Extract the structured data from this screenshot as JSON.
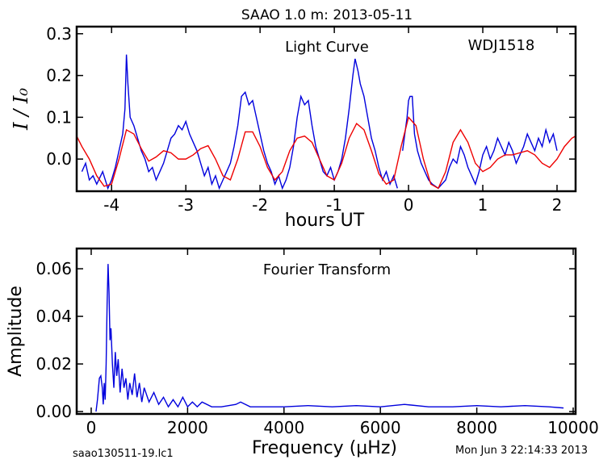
{
  "title": "SAAO 1.0 m:  2013-05-11",
  "footer_left": "saao130511-19.lc1",
  "footer_right": "Mon Jun  3 22:14:33 2013",
  "chart_data": [
    {
      "type": "line",
      "annotations": [
        "Light Curve",
        "WDJ1518"
      ],
      "xlabel": "hours UT",
      "ylabel": "I / I₀",
      "xlim": [
        -4.47,
        2.25
      ],
      "ylim": [
        -0.077,
        0.317
      ],
      "xticks": [
        -4,
        -3,
        -2,
        -1,
        0,
        1,
        2
      ],
      "yticks": [
        {
          "value": 0,
          "label": "0.0"
        },
        0.1,
        0.2,
        0.3
      ],
      "series": [
        {
          "color": "#0000dd",
          "x": [
            -4.4,
            -4.35,
            -4.3,
            -4.25,
            -4.2,
            -4.12,
            -4.05,
            -4.0,
            -3.95,
            -3.9,
            -3.85,
            -3.82,
            -3.8,
            -3.78,
            -3.75,
            -3.7,
            -3.65,
            -3.6,
            -3.55,
            -3.5,
            -3.45,
            -3.4,
            -3.35,
            -3.3,
            -3.25,
            -3.2,
            -3.15,
            -3.1,
            -3.05,
            -3.0,
            -2.95,
            -2.9,
            -2.85,
            -2.8,
            -2.75,
            -2.7,
            -2.65,
            -2.6,
            -2.55,
            -2.5,
            -2.45,
            -2.4,
            -2.35,
            -2.3,
            -2.25,
            -2.2,
            -2.15,
            -2.1,
            -2.05,
            -2.0,
            -1.95,
            -1.9,
            -1.85,
            -1.8,
            -1.75,
            -1.7,
            -1.65,
            -1.6,
            -1.55,
            -1.5,
            -1.45,
            -1.4,
            -1.35,
            -1.3,
            -1.25,
            -1.2,
            -1.15,
            -1.1,
            -1.05,
            -1.0,
            -0.95,
            -0.9,
            -0.85,
            -0.8,
            -0.75,
            -0.72,
            -0.68,
            -0.65,
            -0.6,
            -0.55,
            -0.5,
            -0.45,
            -0.4,
            -0.35,
            -0.3,
            -0.25,
            -0.2,
            -0.15,
            -0.1,
            -0.08,
            -0.05,
            -0.02,
            0.0,
            0.02,
            0.05,
            0.08,
            0.12,
            0.17,
            0.22,
            0.27,
            0.32,
            0.4,
            0.5,
            0.55,
            0.6,
            0.65,
            0.7,
            0.75,
            0.8,
            0.85,
            0.9,
            0.95,
            1.0,
            1.05,
            1.1,
            1.15,
            1.2,
            1.25,
            1.3,
            1.35,
            1.4,
            1.45,
            1.5,
            1.55,
            1.6,
            1.65,
            1.7,
            1.75,
            1.8,
            1.85,
            1.9,
            1.95,
            2.0
          ],
          "values": [
            -0.03,
            -0.01,
            -0.05,
            -0.04,
            -0.06,
            -0.03,
            -0.07,
            -0.05,
            -0.02,
            0.02,
            0.06,
            0.12,
            0.25,
            0.18,
            0.1,
            0.08,
            0.05,
            0.02,
            0.0,
            -0.03,
            -0.02,
            -0.05,
            -0.03,
            -0.01,
            0.02,
            0.05,
            0.06,
            0.08,
            0.07,
            0.09,
            0.06,
            0.04,
            0.02,
            -0.01,
            -0.04,
            -0.02,
            -0.06,
            -0.04,
            -0.07,
            -0.05,
            -0.03,
            -0.01,
            0.03,
            0.08,
            0.15,
            0.16,
            0.13,
            0.14,
            0.1,
            0.06,
            0.02,
            -0.01,
            -0.03,
            -0.06,
            -0.04,
            -0.07,
            -0.05,
            -0.02,
            0.03,
            0.1,
            0.15,
            0.13,
            0.14,
            0.08,
            0.03,
            0.0,
            -0.03,
            -0.04,
            -0.02,
            -0.05,
            -0.03,
            0.0,
            0.05,
            0.12,
            0.2,
            0.24,
            0.21,
            0.18,
            0.15,
            0.1,
            0.05,
            0.02,
            -0.02,
            -0.05,
            -0.03,
            -0.06,
            -0.04,
            -0.07,
            null,
            0.02,
            0.06,
            0.1,
            0.14,
            0.15,
            0.15,
            0.06,
            0.02,
            -0.01,
            -0.03,
            -0.05,
            -0.06,
            -0.07,
            -0.05,
            -0.02,
            0.0,
            -0.01,
            0.03,
            0.01,
            -0.02,
            -0.04,
            -0.06,
            -0.03,
            0.01,
            0.03,
            0.0,
            0.02,
            0.05,
            0.03,
            0.01,
            0.04,
            0.02,
            -0.01,
            0.01,
            0.03,
            0.06,
            0.04,
            0.02,
            0.05,
            0.03,
            0.07,
            0.04,
            0.06,
            0.02
          ]
        },
        {
          "color": "#ee0000",
          "x": [
            -4.47,
            -4.4,
            -4.3,
            -4.2,
            -4.1,
            -4.0,
            -3.9,
            -3.8,
            -3.7,
            -3.6,
            -3.5,
            -3.4,
            -3.3,
            -3.2,
            -3.1,
            -3.0,
            -2.9,
            -2.8,
            -2.7,
            -2.6,
            -2.5,
            -2.4,
            -2.3,
            -2.2,
            -2.1,
            -2.0,
            -1.9,
            -1.8,
            -1.7,
            -1.6,
            -1.5,
            -1.4,
            -1.3,
            -1.2,
            -1.1,
            -1.0,
            -0.9,
            -0.8,
            -0.7,
            -0.6,
            -0.5,
            -0.4,
            -0.3,
            -0.2,
            -0.1,
            0.0,
            0.1,
            0.2,
            0.3,
            0.4,
            0.5,
            0.6,
            0.7,
            0.8,
            0.9,
            1.0,
            1.1,
            1.2,
            1.3,
            1.4,
            1.5,
            1.6,
            1.7,
            1.8,
            1.9,
            2.0,
            2.1,
            2.2,
            2.25
          ],
          "values": [
            0.055,
            0.03,
            0.0,
            -0.04,
            -0.065,
            -0.06,
            0.0,
            0.07,
            0.06,
            0.025,
            -0.005,
            0.005,
            0.02,
            0.015,
            0.0,
            0.0,
            0.01,
            0.025,
            0.032,
            0.0,
            -0.04,
            -0.05,
            0.0,
            0.065,
            0.065,
            0.03,
            -0.02,
            -0.05,
            -0.03,
            0.02,
            0.05,
            0.055,
            0.04,
            0.0,
            -0.04,
            -0.05,
            -0.01,
            0.05,
            0.085,
            0.07,
            0.02,
            -0.035,
            -0.06,
            -0.05,
            0.03,
            0.1,
            0.08,
            0.0,
            -0.06,
            -0.07,
            -0.03,
            0.04,
            0.07,
            0.04,
            -0.01,
            -0.03,
            -0.02,
            0.0,
            0.01,
            0.01,
            0.015,
            0.02,
            0.01,
            -0.01,
            -0.02,
            0.0,
            0.03,
            0.05,
            0.055
          ]
        }
      ]
    },
    {
      "type": "line",
      "annotations": [
        "Fourier Transform"
      ],
      "xlabel": "Frequency (μHz)",
      "ylabel": "Amplitude",
      "xlim": [
        -301,
        10050
      ],
      "ylim": [
        -0.001,
        0.0685
      ],
      "xticks": [
        0,
        2000,
        4000,
        6000,
        8000,
        10000
      ],
      "yticks": [
        {
          "value": 0,
          "label": "0.00"
        },
        {
          "value": 0.02,
          "label": "0.02"
        },
        {
          "value": 0.04,
          "label": "0.04"
        },
        {
          "value": 0.06,
          "label": "0.06"
        }
      ],
      "series": [
        {
          "color": "#0000dd",
          "x": [
            100,
            130,
            170,
            200,
            230,
            250,
            270,
            290,
            310,
            330,
            350,
            370,
            390,
            410,
            440,
            470,
            500,
            530,
            560,
            600,
            640,
            680,
            720,
            760,
            800,
            850,
            900,
            950,
            1000,
            1050,
            1100,
            1200,
            1300,
            1400,
            1500,
            1600,
            1700,
            1800,
            1900,
            2000,
            2100,
            2200,
            2300,
            2500,
            2700,
            3000,
            3100,
            3300,
            3600,
            4000,
            4500,
            5000,
            5500,
            6000,
            6500,
            7000,
            7500,
            8000,
            8500,
            9000,
            9500,
            9800
          ],
          "values": [
            0.0,
            0.005,
            0.014,
            0.015,
            0.01,
            0.003,
            0.012,
            0.005,
            0.02,
            0.045,
            0.062,
            0.05,
            0.03,
            0.035,
            0.02,
            0.01,
            0.025,
            0.015,
            0.022,
            0.008,
            0.018,
            0.01,
            0.014,
            0.005,
            0.012,
            0.007,
            0.016,
            0.006,
            0.012,
            0.004,
            0.01,
            0.004,
            0.008,
            0.003,
            0.006,
            0.002,
            0.005,
            0.002,
            0.006,
            0.002,
            0.004,
            0.002,
            0.004,
            0.002,
            0.002,
            0.003,
            0.004,
            0.002,
            0.002,
            0.002,
            0.0025,
            0.002,
            0.0025,
            0.002,
            0.003,
            0.002,
            0.002,
            0.0025,
            0.002,
            0.0025,
            0.002,
            0.0015
          ]
        }
      ]
    }
  ]
}
